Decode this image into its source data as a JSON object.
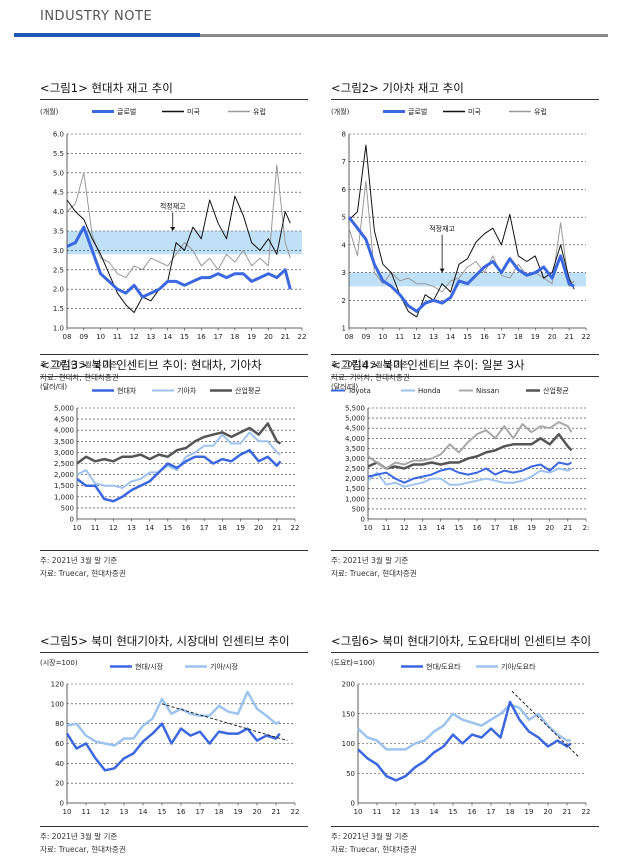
{
  "header": {
    "title": "INDUSTRY NOTE",
    "accent_color": "#2255b8",
    "bar_gray_color": "#8a8a8a"
  },
  "colors": {
    "blue": "#3b67e0",
    "light_blue": "#9ec3ef",
    "black": "#111111",
    "gray": "#9a9a9a",
    "dark_gray": "#555555",
    "band": "#bfe0f7"
  },
  "chart_data": [
    {
      "id": "fig1",
      "type": "line",
      "title": "<그림1> 현대차 재고 추이",
      "unit_label": "(개월)",
      "x": [
        8,
        8.5,
        9,
        9.5,
        10,
        10.5,
        11,
        11.5,
        12,
        12.5,
        13,
        13.5,
        14,
        14.5,
        15,
        15.5,
        16,
        16.5,
        17,
        17.5,
        18,
        18.5,
        19,
        19.5,
        20,
        20.5,
        21,
        21.3
      ],
      "xlim": [
        8,
        22
      ],
      "xticks": [
        "08",
        "09",
        "10",
        "11",
        "12",
        "13",
        "14",
        "15",
        "16",
        "17",
        "18",
        "19",
        "20",
        "21",
        "22"
      ],
      "ylim": [
        1.0,
        6.0
      ],
      "yticks": [
        "1.0",
        "1.5",
        "2.0",
        "2.5",
        "3.0",
        "3.5",
        "4.0",
        "4.5",
        "5.0",
        "5.5",
        "6.0"
      ],
      "series": [
        {
          "name": "글로벌",
          "color": "#3b67e0",
          "width": 3,
          "values": [
            3.1,
            3.2,
            3.6,
            3.0,
            2.4,
            2.2,
            2.0,
            1.9,
            2.1,
            1.8,
            1.9,
            2.0,
            2.2,
            2.2,
            2.1,
            2.2,
            2.3,
            2.3,
            2.4,
            2.3,
            2.4,
            2.4,
            2.2,
            2.3,
            2.4,
            2.3,
            2.5,
            2.0
          ]
        },
        {
          "name": "미국",
          "color": "#111111",
          "width": 1,
          "values": [
            4.3,
            4.0,
            3.8,
            3.3,
            2.9,
            2.4,
            1.9,
            1.6,
            1.4,
            1.8,
            1.7,
            2.0,
            2.2,
            3.2,
            3.0,
            3.6,
            3.3,
            4.3,
            3.7,
            3.3,
            4.4,
            3.9,
            3.2,
            3.0,
            3.3,
            2.9,
            4.0,
            3.7
          ]
        },
        {
          "name": "유럽",
          "color": "#9a9a9a",
          "width": 1,
          "values": [
            4.0,
            4.2,
            5.0,
            3.4,
            2.8,
            2.7,
            2.4,
            2.3,
            2.6,
            2.5,
            2.8,
            2.7,
            2.6,
            2.9,
            3.2,
            3.0,
            2.6,
            2.8,
            2.5,
            2.9,
            2.7,
            3.0,
            2.6,
            2.8,
            2.6,
            5.2,
            3.2,
            2.8
          ]
        }
      ],
      "band": [
        2.9,
        3.5
      ],
      "annotation": {
        "text": "적정재고",
        "x": 14.3,
        "y_from": 4.0,
        "y_to": 3.5
      },
      "note": "주: 2021년 3월 말 기준",
      "source": "자료: 현대차, 현대차증권"
    },
    {
      "id": "fig2",
      "type": "line",
      "title": "<그림2> 기아차 재고 추이",
      "unit_label": "(개월)",
      "x": [
        8,
        8.5,
        9,
        9.5,
        10,
        10.5,
        11,
        11.5,
        12,
        12.5,
        13,
        13.5,
        14,
        14.5,
        15,
        15.5,
        16,
        16.5,
        17,
        17.5,
        18,
        18.5,
        19,
        19.5,
        20,
        20.5,
        21,
        21.3
      ],
      "xlim": [
        8,
        22
      ],
      "xticks": [
        "08",
        "09",
        "10",
        "11",
        "12",
        "13",
        "14",
        "15",
        "16",
        "17",
        "18",
        "19",
        "20",
        "21",
        "22"
      ],
      "ylim": [
        1,
        8
      ],
      "yticks": [
        "1",
        "2",
        "3",
        "4",
        "5",
        "6",
        "7",
        "8"
      ],
      "series": [
        {
          "name": "글로벌",
          "color": "#3b67e0",
          "width": 3,
          "values": [
            5.0,
            4.6,
            4.2,
            3.3,
            2.7,
            2.5,
            2.2,
            1.8,
            1.6,
            1.9,
            2.0,
            1.9,
            2.1,
            2.7,
            2.6,
            2.9,
            3.2,
            3.4,
            3.0,
            3.5,
            3.1,
            2.9,
            3.0,
            3.2,
            2.8,
            3.6,
            2.6,
            2.5
          ]
        },
        {
          "name": "미국",
          "color": "#111111",
          "width": 1,
          "values": [
            4.9,
            5.2,
            7.6,
            4.5,
            3.3,
            3.0,
            2.2,
            1.6,
            1.4,
            2.2,
            2.0,
            2.6,
            2.3,
            3.3,
            3.5,
            4.1,
            4.4,
            4.6,
            4.0,
            5.1,
            3.6,
            3.4,
            3.6,
            2.8,
            3.0,
            4.0,
            2.8,
            2.4
          ]
        },
        {
          "name": "유럽",
          "color": "#9a9a9a",
          "width": 1,
          "values": [
            4.6,
            3.6,
            6.3,
            3.0,
            2.6,
            3.0,
            2.7,
            2.8,
            2.6,
            2.6,
            2.5,
            2.3,
            2.7,
            2.8,
            3.2,
            3.4,
            3.0,
            3.6,
            2.9,
            2.8,
            3.3,
            2.9,
            3.0,
            2.8,
            2.6,
            4.8,
            2.5,
            2.7
          ]
        }
      ],
      "band": [
        2.5,
        3.0
      ],
      "annotation": {
        "text": "적정재고",
        "x": 13.5,
        "y_from": 4.4,
        "y_to": 3.0
      },
      "note": "주: 2021년 2월 말 기준",
      "source": "자료: 기아차, 현대차증권"
    },
    {
      "id": "fig3",
      "type": "line",
      "title": "<그림3> 북미 인센티브 추이: 현대차, 기아차",
      "unit_label": "(달러/대)",
      "x": [
        10,
        10.5,
        11,
        11.5,
        12,
        12.5,
        13,
        13.5,
        14,
        14.5,
        15,
        15.5,
        16,
        16.5,
        17,
        17.5,
        18,
        18.5,
        19,
        19.5,
        20,
        20.5,
        21,
        21.2
      ],
      "xlim": [
        10,
        22
      ],
      "xticks": [
        "10",
        "11",
        "12",
        "13",
        "14",
        "15",
        "16",
        "17",
        "18",
        "19",
        "20",
        "21",
        "22"
      ],
      "ylim": [
        0,
        5000
      ],
      "yticks": [
        "0",
        "500",
        "1,000",
        "1,500",
        "2,000",
        "2,500",
        "3,000",
        "3,500",
        "4,000",
        "4,500",
        "5,000"
      ],
      "series": [
        {
          "name": "현대차",
          "color": "#3b67e0",
          "width": 2.5,
          "values": [
            1800,
            1500,
            1500,
            900,
            800,
            1000,
            1300,
            1500,
            1700,
            2100,
            2500,
            2300,
            2600,
            2800,
            2800,
            2500,
            2700,
            2600,
            2900,
            3100,
            2600,
            2800,
            2400,
            2600
          ]
        },
        {
          "name": "기아차",
          "color": "#9ec3ef",
          "width": 2,
          "values": [
            2000,
            2200,
            1600,
            1500,
            1500,
            1400,
            1700,
            1800,
            2100,
            2100,
            2400,
            2200,
            2800,
            3000,
            3300,
            3300,
            3800,
            3400,
            3400,
            3900,
            3500,
            3500,
            3000,
            2900
          ]
        },
        {
          "name": "산업평균",
          "color": "#555555",
          "width": 2.5,
          "values": [
            2500,
            2800,
            2600,
            2700,
            2600,
            2800,
            2800,
            2900,
            2700,
            2900,
            2800,
            3100,
            3200,
            3500,
            3700,
            3800,
            3900,
            3700,
            3900,
            4100,
            3800,
            4300,
            3500,
            3400
          ]
        }
      ],
      "note": "주: 2021년 3월 말 기준",
      "source": "자료: Truecar, 현대차증권"
    },
    {
      "id": "fig4",
      "type": "line",
      "title": "<그림4> 북미 인센티브 추이: 일본 3사",
      "unit_label": "(달러/대)",
      "x": [
        10,
        10.5,
        11,
        11.5,
        12,
        12.5,
        13,
        13.5,
        14,
        14.5,
        15,
        15.5,
        16,
        16.5,
        17,
        17.5,
        18,
        18.5,
        19,
        19.5,
        20,
        20.5,
        21,
        21.2
      ],
      "xlim": [
        10,
        22
      ],
      "xticks": [
        "10",
        "11",
        "12",
        "13",
        "14",
        "15",
        "16",
        "17",
        "18",
        "19",
        "20",
        "21",
        "2:"
      ],
      "ylim": [
        0,
        5500
      ],
      "yticks": [
        "0",
        "500",
        "1,000",
        "1,500",
        "2,000",
        "2,500",
        "3,000",
        "3,500",
        "4,000",
        "4,500",
        "5,000",
        "5,500"
      ],
      "series": [
        {
          "name": "Toyota",
          "color": "#3b67e0",
          "width": 2,
          "values": [
            2100,
            2200,
            2300,
            2000,
            1800,
            2000,
            2100,
            2200,
            2400,
            2500,
            2300,
            2200,
            2300,
            2500,
            2200,
            2400,
            2300,
            2400,
            2600,
            2700,
            2400,
            2800,
            2700,
            2800
          ]
        },
        {
          "name": "Honda",
          "color": "#9ec3ef",
          "width": 2,
          "values": [
            1900,
            2300,
            1700,
            1800,
            1600,
            1700,
            1800,
            2000,
            2000,
            1700,
            1700,
            1800,
            1900,
            2000,
            1900,
            1800,
            1800,
            1900,
            2100,
            2400,
            2300,
            2500,
            2400,
            2500
          ]
        },
        {
          "name": "Nissan",
          "color": "#a8a8a8",
          "width": 2,
          "values": [
            3100,
            2800,
            2500,
            2800,
            2700,
            2900,
            2900,
            3000,
            3200,
            3700,
            3300,
            3800,
            4200,
            4400,
            4000,
            4600,
            4000,
            4700,
            4300,
            4600,
            4500,
            4800,
            4600,
            4300
          ]
        },
        {
          "name": "산업평균",
          "color": "#555555",
          "width": 2.5,
          "values": [
            2600,
            2800,
            2500,
            2600,
            2500,
            2700,
            2700,
            2800,
            2700,
            2800,
            2800,
            3000,
            3100,
            3300,
            3400,
            3600,
            3700,
            3700,
            3700,
            4000,
            3700,
            4200,
            3600,
            3400
          ]
        }
      ],
      "note": "주: 2021년 3월 말 기준",
      "source": "자료: Truecar, 현대차증권"
    },
    {
      "id": "fig5",
      "type": "line",
      "title": "<그림5> 북미 현대기아차, 시장대비 인센티브 추이",
      "unit_label": "(시장=100)",
      "x": [
        10,
        10.5,
        11,
        11.5,
        12,
        12.5,
        13,
        13.5,
        14,
        14.5,
        15,
        15.5,
        16,
        16.5,
        17,
        17.5,
        18,
        18.5,
        19,
        19.5,
        20,
        20.5,
        21,
        21.2
      ],
      "xlim": [
        10,
        22
      ],
      "xticks": [
        "10",
        "11",
        "12",
        "13",
        "14",
        "15",
        "16",
        "17",
        "18",
        "19",
        "20",
        "21",
        "22"
      ],
      "ylim": [
        0,
        120
      ],
      "yticks": [
        "0",
        "20",
        "40",
        "60",
        "80",
        "100",
        "120"
      ],
      "series": [
        {
          "name": "현대/시장",
          "color": "#3b67e0",
          "width": 2.5,
          "values": [
            70,
            55,
            60,
            45,
            33,
            35,
            45,
            50,
            62,
            70,
            80,
            60,
            75,
            68,
            72,
            60,
            72,
            70,
            70,
            75,
            63,
            68,
            65,
            70
          ]
        },
        {
          "name": "기아/시장",
          "color": "#9ec3ef",
          "width": 2.5,
          "values": [
            78,
            80,
            68,
            62,
            60,
            58,
            65,
            65,
            78,
            85,
            105,
            90,
            95,
            90,
            88,
            88,
            98,
            92,
            90,
            112,
            95,
            88,
            80,
            82
          ]
        }
      ],
      "trendline": {
        "x1": 15,
        "y1": 100,
        "x2": 21.6,
        "y2": 63
      },
      "note": "주: 2021년 3월 말 기준",
      "source": "자료: Truecar, 현대차증권"
    },
    {
      "id": "fig6",
      "type": "line",
      "title": "<그림6> 북미 현대기아차, 도요타대비 인센티브 추이",
      "unit_label": "(도요타=100)",
      "x": [
        10,
        10.5,
        11,
        11.5,
        12,
        12.5,
        13,
        13.5,
        14,
        14.5,
        15,
        15.5,
        16,
        16.5,
        17,
        17.5,
        18,
        18.5,
        19,
        19.5,
        20,
        20.5,
        21,
        21.2
      ],
      "xlim": [
        10,
        22
      ],
      "xticks": [
        "10",
        "11",
        "12",
        "13",
        "14",
        "15",
        "16",
        "17",
        "18",
        "19",
        "20",
        "21",
        "22"
      ],
      "ylim": [
        0,
        200
      ],
      "yticks": [
        "0",
        "50",
        "100",
        "150",
        "200"
      ],
      "series": [
        {
          "name": "현대/도요타",
          "color": "#3b67e0",
          "width": 2.5,
          "values": [
            90,
            75,
            65,
            45,
            38,
            45,
            60,
            70,
            85,
            95,
            115,
            100,
            115,
            110,
            125,
            110,
            170,
            140,
            120,
            110,
            95,
            105,
            95,
            100
          ]
        },
        {
          "name": "기아/도요타",
          "color": "#9ec3ef",
          "width": 2.5,
          "values": [
            125,
            110,
            105,
            90,
            90,
            90,
            100,
            105,
            120,
            130,
            150,
            140,
            135,
            130,
            140,
            150,
            165,
            160,
            140,
            150,
            130,
            115,
            105,
            105
          ]
        }
      ],
      "trendline": {
        "x1": 18.1,
        "y1": 188,
        "x2": 21.6,
        "y2": 78
      },
      "note": "주: 2021년 3월 말 기준",
      "source": "자료: Truecar, 현대차증권"
    }
  ]
}
